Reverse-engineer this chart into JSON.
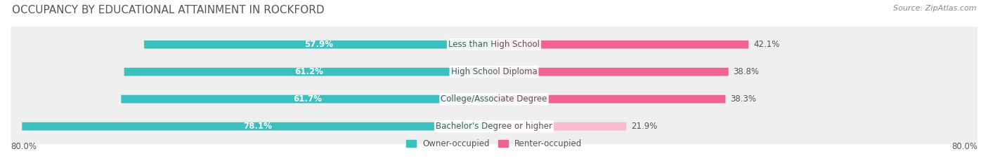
{
  "title": "OCCUPANCY BY EDUCATIONAL ATTAINMENT IN ROCKFORD",
  "source": "Source: ZipAtlas.com",
  "categories": [
    "Less than High School",
    "High School Diploma",
    "College/Associate Degree",
    "Bachelor's Degree or higher"
  ],
  "owner_values": [
    57.9,
    61.2,
    61.7,
    78.1
  ],
  "renter_values": [
    42.1,
    38.8,
    38.3,
    21.9
  ],
  "owner_color": "#3bbfbf",
  "renter_colors": [
    "#f06292",
    "#f06292",
    "#f06292",
    "#f8bbd0"
  ],
  "owner_label": "Owner-occupied",
  "renter_label": "Renter-occupied",
  "x_min_label": "80.0%",
  "x_max_label": "80.0%",
  "bg_color": "#ffffff",
  "row_bg_color": "#efefef",
  "title_color": "#555555",
  "source_color": "#888888",
  "max_val": 80.0,
  "title_fontsize": 11,
  "label_fontsize": 8.5,
  "value_fontsize": 8.5,
  "legend_fontsize": 8.5,
  "source_fontsize": 8.0
}
